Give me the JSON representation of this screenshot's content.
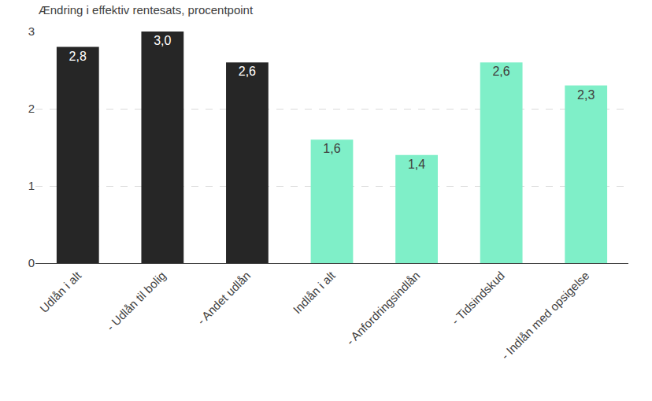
{
  "chart_data": {
    "type": "bar",
    "title": "Ændring i effektiv rentesats, procentpoint",
    "categories": [
      "Udlån i alt",
      "- Udlån til bolig",
      "- Andet udlån",
      "Indlån i alt",
      "- Anfordringsindlån",
      "- Tidsindskud",
      "- Indlån med opsigelse"
    ],
    "values": [
      2.8,
      3.0,
      2.6,
      1.6,
      1.4,
      2.6,
      2.3
    ],
    "value_labels": [
      "2,8",
      "3,0",
      "2,6",
      "1,6",
      "1,4",
      "2,6",
      "2,3"
    ],
    "colors": [
      "#262626",
      "#262626",
      "#262626",
      "#7fefc8",
      "#7fefc8",
      "#7fefc8",
      "#7fefc8"
    ],
    "ylim": [
      0,
      3
    ],
    "yticks": [
      0,
      1,
      2,
      3
    ],
    "grid": true,
    "data_labels": true
  }
}
